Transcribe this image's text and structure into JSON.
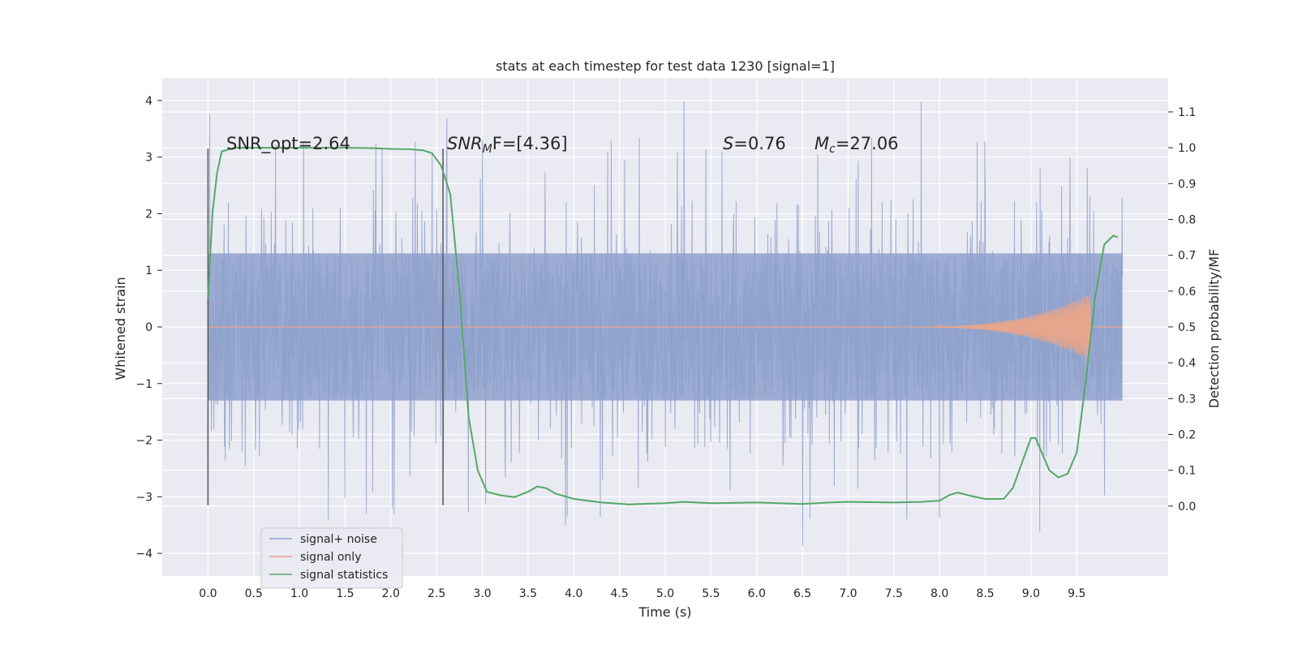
{
  "chart_data": {
    "type": "line",
    "title": "stats at each timestep for test data 1230 [signal=1]",
    "xlabel": "Time (s)",
    "ylabel": "Whitened strain",
    "y2label": "Detection probability/MF",
    "xlim": [
      -0.5,
      10.5
    ],
    "ylim": [
      -4.4,
      4.4
    ],
    "y2lim": [
      -0.195,
      1.195
    ],
    "x_ticks": [
      "0.0",
      "0.5",
      "1.0",
      "1.5",
      "2.0",
      "2.5",
      "3.0",
      "3.5",
      "4.0",
      "4.5",
      "5.0",
      "5.5",
      "6.0",
      "6.5",
      "7.0",
      "7.5",
      "8.0",
      "8.5",
      "9.0",
      "9.5"
    ],
    "y_ticks": [
      "4",
      "3",
      "2",
      "1",
      "0",
      "−1",
      "−2",
      "−3",
      "−4"
    ],
    "y2_ticks": [
      "1.1",
      "1.0",
      "0.9",
      "0.8",
      "0.7",
      "0.6",
      "0.5",
      "0.4",
      "0.3",
      "0.2",
      "0.1",
      "0.0"
    ],
    "grid": true,
    "legend_position": "lower-left",
    "annotations": {
      "snr_opt": "SNR_opt=2.64",
      "snr_mf_prefix": "SNR",
      "snr_mf_sub": "M",
      "snr_mf_suffix": "F=[4.36]",
      "s_italic": "S",
      "s_value": "=0.76",
      "mc_italic": "M",
      "mc_sub": "c",
      "mc_value": "=27.06"
    },
    "window_markers_x": [
      0.0,
      2.57
    ],
    "window_markers_y": [
      -3.15,
      3.15
    ],
    "series": [
      {
        "name": "signal+ noise",
        "color": "#8da0cb",
        "x_range": [
          0.0,
          10.0
        ],
        "core_band": [
          -1.3,
          1.3
        ],
        "peak_envelope": [
          -4.05,
          4.05
        ]
      },
      {
        "name": "signal only",
        "color": "#e6a58c",
        "chirp_start": 7.5,
        "chirp_end": 9.65,
        "max_amplitude": 0.6
      },
      {
        "name": "signal statistics",
        "color": "#55a868",
        "x": [
          0.0,
          0.05,
          0.1,
          0.15,
          0.3,
          0.5,
          1.0,
          1.5,
          1.8,
          2.0,
          2.2,
          2.35,
          2.45,
          2.55,
          2.65,
          2.75,
          2.85,
          2.95,
          3.05,
          3.2,
          3.35,
          3.5,
          3.6,
          3.7,
          3.8,
          4.0,
          4.3,
          4.6,
          5.0,
          5.2,
          5.5,
          6.0,
          6.5,
          6.8,
          7.0,
          7.5,
          7.8,
          8.0,
          8.1,
          8.2,
          8.35,
          8.5,
          8.7,
          8.8,
          8.9,
          9.0,
          9.05,
          9.1,
          9.2,
          9.3,
          9.4,
          9.5,
          9.6,
          9.7,
          9.8,
          9.9,
          9.95
        ],
        "y": [
          0.58,
          0.82,
          0.93,
          0.99,
          1.0,
          1.0,
          1.0,
          1.0,
          0.999,
          0.997,
          0.996,
          0.993,
          0.985,
          0.95,
          0.87,
          0.6,
          0.25,
          0.1,
          0.04,
          0.03,
          0.025,
          0.04,
          0.055,
          0.05,
          0.035,
          0.02,
          0.01,
          0.005,
          0.008,
          0.012,
          0.008,
          0.01,
          0.006,
          0.01,
          0.012,
          0.01,
          0.012,
          0.015,
          0.03,
          0.038,
          0.028,
          0.02,
          0.02,
          0.05,
          0.12,
          0.19,
          0.19,
          0.16,
          0.1,
          0.08,
          0.09,
          0.15,
          0.35,
          0.58,
          0.73,
          0.755,
          0.75
        ]
      }
    ]
  }
}
